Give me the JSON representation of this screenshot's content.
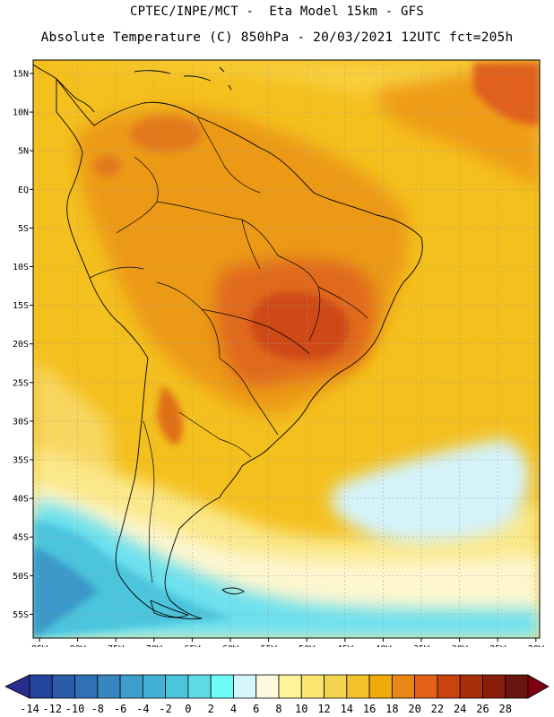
{
  "header": {
    "title_line1": "CPTEC/INPE/MCT -  Eta Model 15km - GFS",
    "title_line2": "Absolute Temperature (C) 850hPa - 20/03/2021 12UTC fct=205h"
  },
  "map": {
    "lat_labels": [
      "15N",
      "10N",
      "5N",
      "EQ",
      "5S",
      "10S",
      "15S",
      "20S",
      "25S",
      "30S",
      "35S",
      "40S",
      "45S",
      "50S",
      "55S"
    ],
    "lon_labels": [
      "85W",
      "80W",
      "75W",
      "70W",
      "65W",
      "60W",
      "55W",
      "50W",
      "45W",
      "40W",
      "35W",
      "30W",
      "25W",
      "20W"
    ],
    "ocean_color": "#f4c01e",
    "land_outline_color": "#000000"
  },
  "colorbar": {
    "labels": [
      "-14",
      "-12",
      "-10",
      "-8",
      "-6",
      "-4",
      "-2",
      "0",
      "2",
      "4",
      "6",
      "8",
      "10",
      "12",
      "14",
      "16",
      "18",
      "20",
      "22",
      "24",
      "26",
      "28"
    ],
    "colors": [
      "#23449a",
      "#2a5ca8",
      "#3070b4",
      "#3886c0",
      "#3f9dcb",
      "#45b0d5",
      "#4cc4dc",
      "#60dbe6",
      "#6ffbf8",
      "#d4f5fb",
      "#fef8e0",
      "#fdf39a",
      "#fbe470",
      "#f5d450",
      "#f2c12c",
      "#efab0a",
      "#e88714",
      "#e2621a",
      "#c84310",
      "#a82e0a",
      "#8a1c0a",
      "#6a1410"
    ],
    "left_cap_color": "#2b2d8a",
    "right_cap_color": "#800010"
  }
}
